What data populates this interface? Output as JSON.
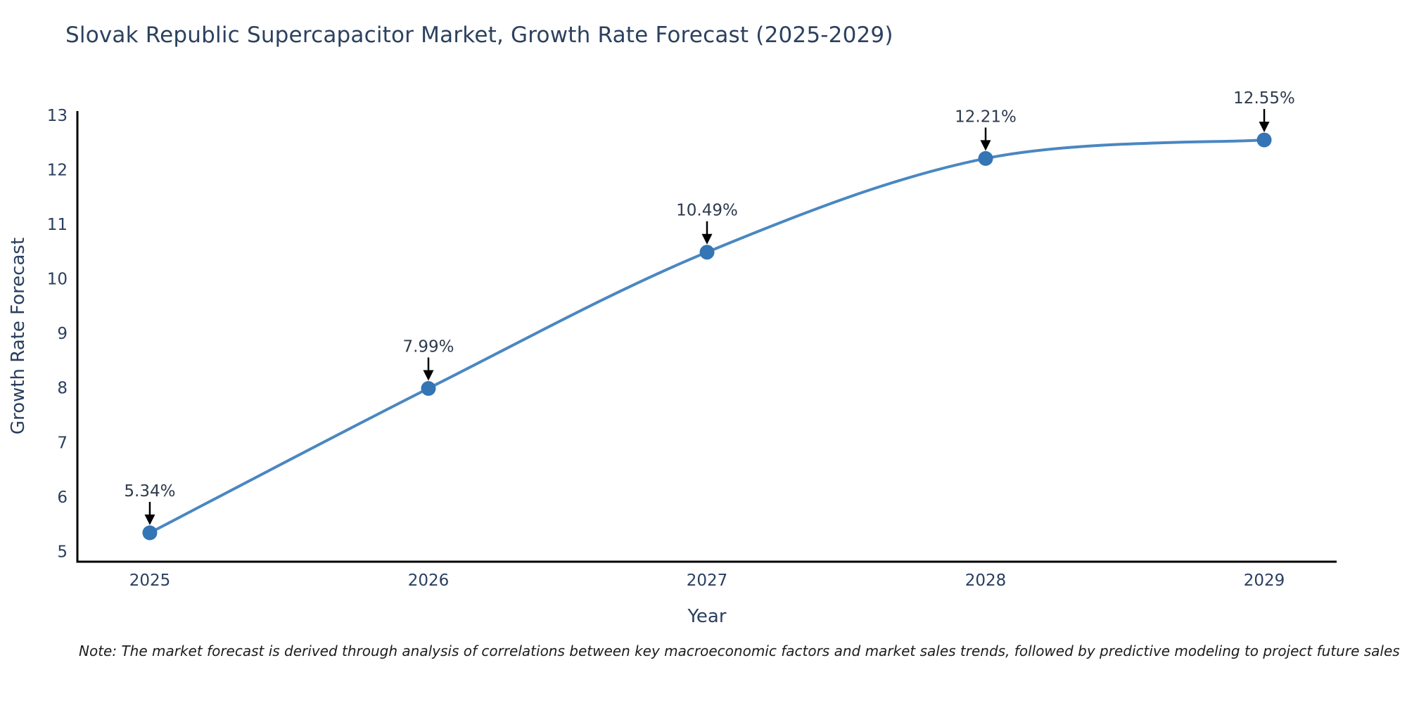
{
  "title": "Slovak Republic Supercapacitor Market, Growth Rate Forecast (2025-2029)",
  "note": "Note: The market forecast is derived through analysis of correlations between key macroeconomic factors and market sales trends, followed by predictive modeling to project future sales",
  "chart_data": {
    "type": "line",
    "x": [
      2025,
      2026,
      2027,
      2028,
      2029
    ],
    "values": [
      5.34,
      7.99,
      10.49,
      12.21,
      12.55
    ],
    "point_labels": [
      "5.34%",
      "7.99%",
      "10.49%",
      "12.21%",
      "12.55%"
    ],
    "title": "Slovak Republic Supercapacitor Market, Growth Rate Forecast (2025-2029)",
    "xlabel": "Year",
    "ylabel": "Growth Rate Forecast",
    "x_ticks": [
      2025,
      2026,
      2027,
      2028,
      2029
    ],
    "y_ticks": [
      5,
      6,
      7,
      8,
      9,
      10,
      11,
      12,
      13
    ],
    "x_range": [
      2024.74,
      2029.26
    ],
    "y_range": [
      4.81,
      13.08
    ],
    "grid": false,
    "legend": "none",
    "line_shape": "spline",
    "marker_size": 21,
    "colors": {
      "line": "#4a87c1",
      "marker": "#3375b5",
      "annotation_arrow": "#000000",
      "axis_line": "#000000",
      "text": "#2a3f5f",
      "note_text": "#1c1c1c",
      "background": "#ffffff"
    }
  }
}
